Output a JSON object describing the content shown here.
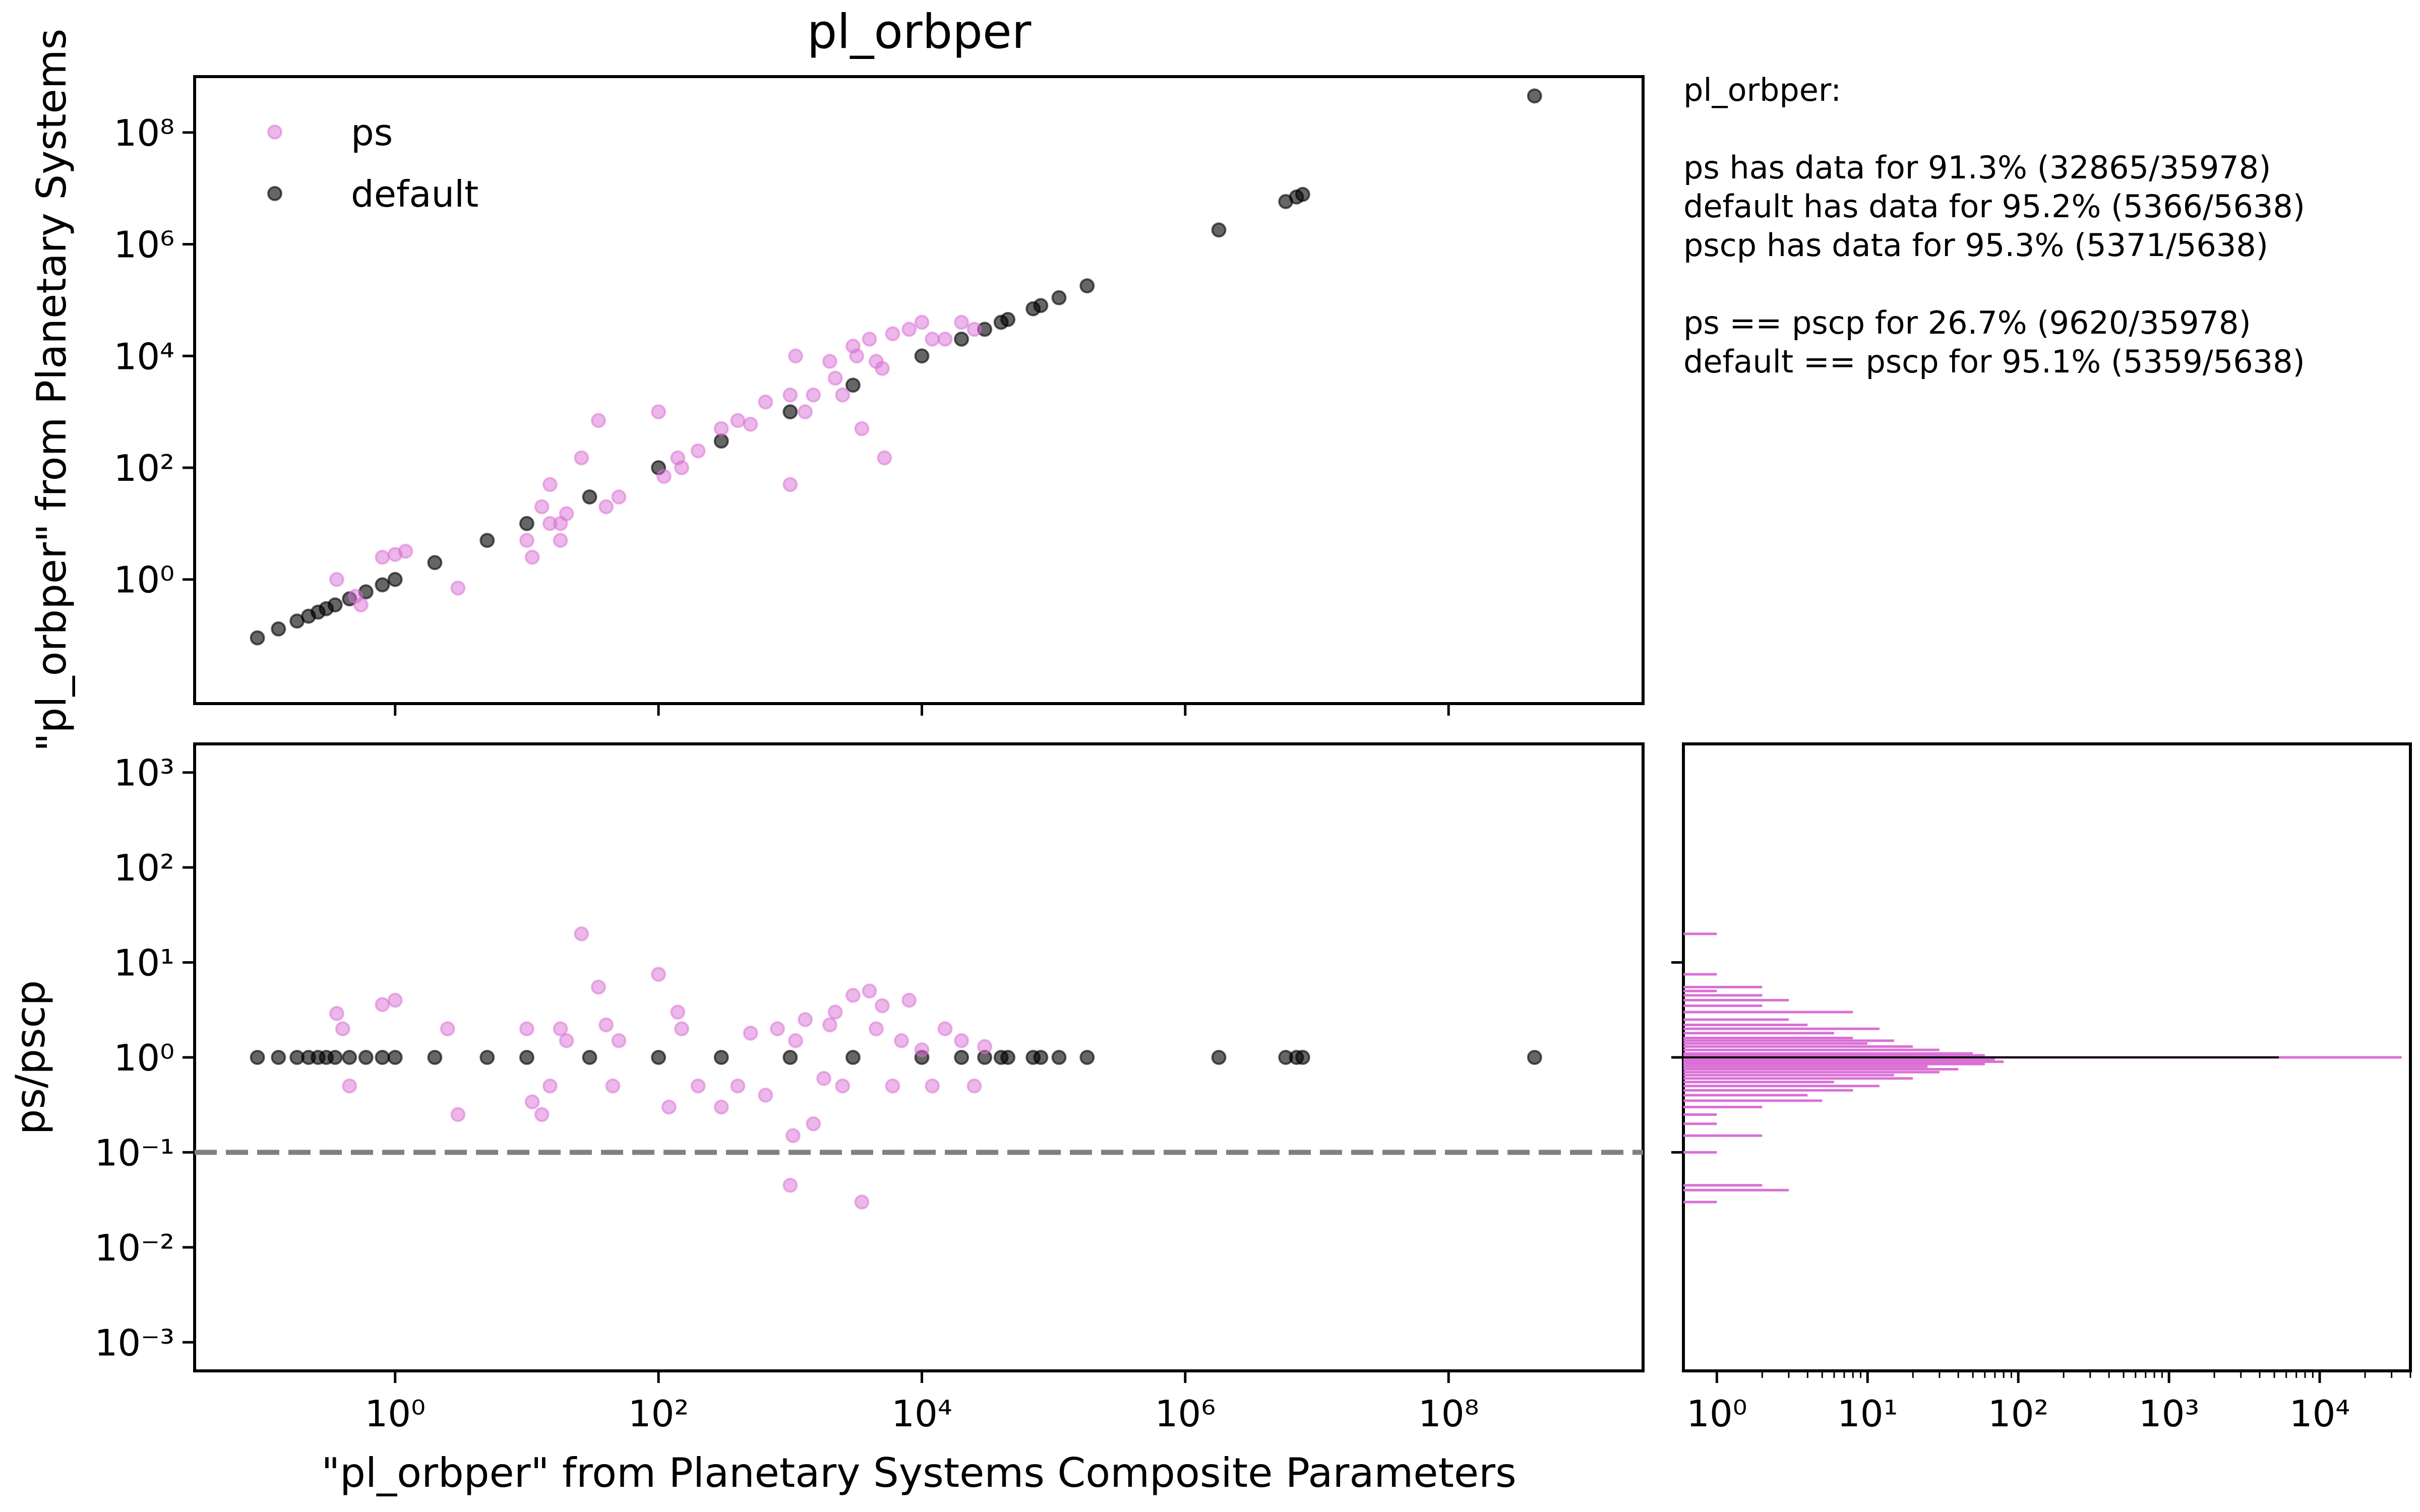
{
  "figure": {
    "title": "pl_orbper",
    "info_lines": [
      "pl_orbper:",
      "",
      "ps has data for 91.3% (32865/35978)",
      "default has data for 95.2% (5366/5638)",
      "pscp has data for 95.3% (5371/5638)",
      "",
      "ps == pscp  for 26.7% (9620/35978)",
      "default == pscp  for 95.1% (5359/5638)"
    ],
    "colors": {
      "ps": "#da70d6",
      "default": "#000000",
      "reference_line": "#808080"
    }
  },
  "chart_data": [
    {
      "type": "scatter",
      "panel": "top",
      "title": "pl_orbper",
      "xlabel": "",
      "ylabel": "\"pl_orbper\" from Planetary Systems",
      "xscale": "log",
      "yscale": "log",
      "xlim": [
        0.03,
        3000000000
      ],
      "ylim": [
        0.006,
        1000000000
      ],
      "xticks": [
        1,
        100,
        10000,
        1000000,
        100000000
      ],
      "yticks": [
        1,
        100,
        10000,
        1000000,
        100000000
      ],
      "ytick_labels": [
        "10⁰",
        "10²",
        "10⁴",
        "10⁶",
        "10⁸"
      ],
      "legend": {
        "placement": "top-left",
        "entries": [
          "ps",
          "default"
        ]
      },
      "series": [
        {
          "name": "ps",
          "color": "#da70d6",
          "x": [
            0.36,
            0.5,
            0.55,
            0.8,
            1.0,
            1.2,
            3.0,
            10,
            11,
            13,
            15,
            15,
            18,
            18,
            20,
            26,
            35,
            40,
            50,
            100,
            110,
            140,
            150,
            200,
            300,
            400,
            500,
            650,
            1000,
            1000,
            1300,
            1500,
            2000,
            2200,
            2500,
            3000,
            3500,
            4000,
            5000,
            5200,
            6000,
            8000,
            10000,
            12000,
            15000,
            20000,
            25000,
            1100,
            3200,
            4500
          ],
          "y": [
            1.0,
            0.5,
            0.35,
            2.5,
            2.8,
            3.2,
            0.7,
            5,
            2.5,
            20,
            10,
            50,
            5,
            10,
            15,
            150,
            700,
            20,
            30,
            1000,
            70,
            150,
            100,
            200,
            500,
            700,
            600,
            1500,
            2000,
            50,
            1000,
            2000,
            8000,
            4000,
            2000,
            15000,
            500,
            20000,
            6000,
            150,
            25000,
            30000,
            40000,
            20000,
            20000,
            40000,
            30000,
            10000,
            10000,
            8000
          ]
        },
        {
          "name": "default",
          "color": "#000000",
          "x": [
            0.09,
            0.13,
            0.18,
            0.22,
            0.26,
            0.3,
            0.35,
            0.45,
            0.6,
            0.8,
            1,
            2,
            5,
            10,
            30,
            100,
            300,
            1000,
            3000,
            10000,
            20000,
            30000,
            40000,
            45000,
            70000,
            80000,
            110000,
            180000,
            1800000,
            5800000,
            7000000,
            7800000,
            450000000
          ],
          "y": [
            0.09,
            0.13,
            0.18,
            0.22,
            0.26,
            0.3,
            0.35,
            0.45,
            0.6,
            0.8,
            1,
            2,
            5,
            10,
            30,
            100,
            300,
            1000,
            3000,
            10000,
            20000,
            30000,
            40000,
            45000,
            70000,
            80000,
            110000,
            180000,
            1800000,
            5800000,
            7000000,
            7800000,
            450000000
          ]
        }
      ]
    },
    {
      "type": "scatter",
      "panel": "bottom-left",
      "xlabel": "\"pl_orbper\" from Planetary Systems Composite Parameters",
      "ylabel": "ps/pscp",
      "xscale": "log",
      "yscale": "log",
      "xlim": [
        0.03,
        3000000000
      ],
      "ylim": [
        0.0005,
        2000
      ],
      "xticks": [
        1,
        100,
        10000,
        1000000,
        100000000
      ],
      "xtick_labels": [
        "10⁰",
        "10²",
        "10⁴",
        "10⁶",
        "10⁸"
      ],
      "yticks": [
        0.001,
        0.01,
        0.1,
        1,
        10,
        100,
        1000
      ],
      "ytick_labels": [
        "10⁻³",
        "10⁻²",
        "10⁻¹",
        "10⁰",
        "10¹",
        "10²",
        "10³"
      ],
      "reference_line": {
        "y": 0.1,
        "style": "dashed"
      },
      "series": [
        {
          "name": "ps",
          "color": "#da70d6",
          "x": [
            0.36,
            0.4,
            0.45,
            0.8,
            1.0,
            2.5,
            3.0,
            10,
            11,
            13,
            15,
            18,
            20,
            26,
            35,
            40,
            45,
            50,
            100,
            120,
            140,
            150,
            200,
            300,
            400,
            500,
            650,
            800,
            1000,
            1050,
            1100,
            1300,
            1500,
            1800,
            2000,
            2200,
            2500,
            3000,
            3500,
            4000,
            4500,
            5000,
            6000,
            7000,
            8000,
            10000,
            12000,
            15000,
            20000,
            25000,
            30000
          ],
          "y": [
            2.9,
            2.0,
            0.5,
            3.6,
            4.0,
            2.0,
            0.25,
            2.0,
            0.34,
            0.25,
            0.5,
            2.0,
            1.5,
            20,
            5.5,
            2.2,
            0.5,
            1.5,
            7.5,
            0.3,
            3.0,
            2.0,
            0.5,
            0.3,
            0.5,
            1.8,
            0.4,
            2.0,
            0.045,
            0.15,
            1.5,
            2.5,
            0.2,
            0.6,
            2.2,
            3.0,
            0.5,
            4.5,
            0.03,
            5.0,
            2.0,
            3.5,
            0.5,
            1.5,
            4.0,
            1.2,
            0.5,
            2.0,
            1.5,
            0.5,
            1.3
          ]
        },
        {
          "name": "default",
          "color": "#000000",
          "x": [
            0.09,
            0.13,
            0.18,
            0.22,
            0.26,
            0.3,
            0.35,
            0.45,
            0.6,
            0.8,
            1,
            2,
            5,
            10,
            30,
            100,
            300,
            1000,
            3000,
            10000,
            20000,
            30000,
            40000,
            45000,
            70000,
            80000,
            110000,
            180000,
            1800000,
            5800000,
            7000000,
            7800000,
            450000000
          ],
          "y": [
            1,
            1,
            1,
            1,
            1,
            1,
            1,
            1,
            1,
            1,
            1,
            1,
            1,
            1,
            1,
            1,
            1,
            1,
            1,
            1,
            1,
            1,
            1,
            1,
            1,
            1,
            1,
            1,
            1,
            1,
            1,
            1,
            1
          ]
        }
      ]
    },
    {
      "type": "bar",
      "panel": "bottom-right",
      "orientation": "horizontal",
      "xscale": "log",
      "yscale": "log",
      "xlim": [
        0.6,
        40000
      ],
      "ylim": [
        0.0005,
        2000
      ],
      "xticks": [
        1,
        10,
        100,
        1000,
        10000
      ],
      "xtick_labels": [
        "10⁰",
        "10¹",
        "10²",
        "10³",
        "10⁴"
      ],
      "series": [
        {
          "name": "ps",
          "color": "#da70d6",
          "bins": [
            0.03,
            0.04,
            0.045,
            0.1,
            0.15,
            0.2,
            0.25,
            0.3,
            0.35,
            0.4,
            0.45,
            0.5,
            0.55,
            0.6,
            0.65,
            0.7,
            0.75,
            0.8,
            0.85,
            0.9,
            0.95,
            1.0,
            1.05,
            1.1,
            1.2,
            1.3,
            1.4,
            1.5,
            1.6,
            1.8,
            2.0,
            2.2,
            2.5,
            3.0,
            3.5,
            4.0,
            4.5,
            5.0,
            5.5,
            7.5,
            20
          ],
          "counts": [
            1,
            3,
            2,
            1,
            2,
            1,
            1,
            2,
            5,
            4,
            8,
            12,
            6,
            20,
            15,
            30,
            40,
            25,
            60,
            80,
            70,
            35000,
            60,
            50,
            30,
            20,
            10,
            15,
            8,
            6,
            12,
            4,
            3,
            8,
            2,
            3,
            2,
            1,
            2,
            1,
            1
          ]
        },
        {
          "name": "default",
          "color": "#000000",
          "bins": [
            1.0
          ],
          "counts": [
            5359
          ]
        }
      ]
    }
  ]
}
